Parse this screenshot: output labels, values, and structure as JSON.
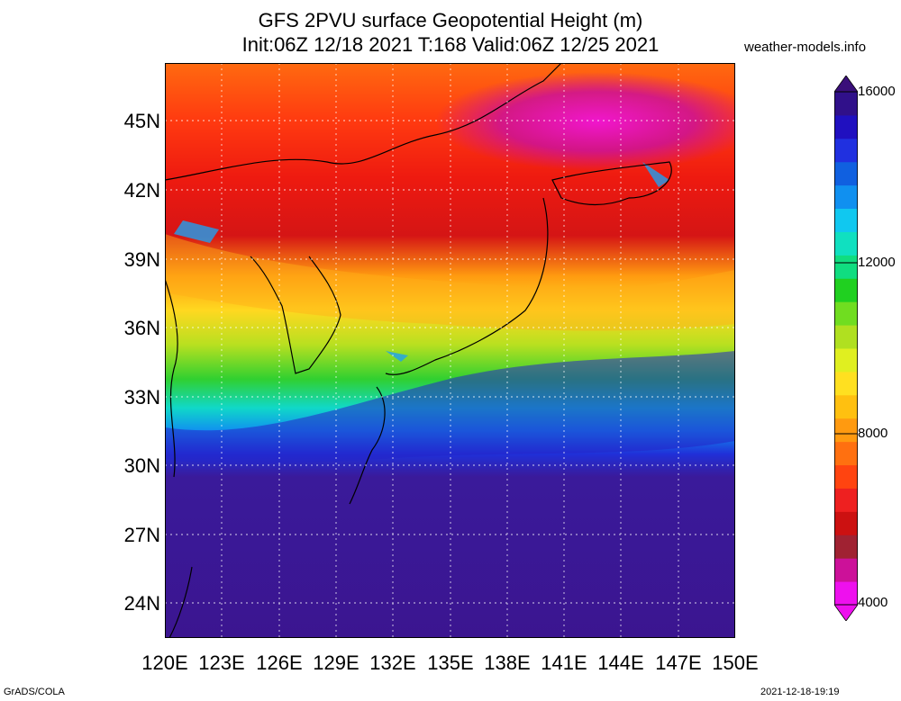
{
  "title_line1": "GFS 2PVU surface Geopotential Height (m)",
  "title_line2": "Init:06Z 12/18 2021 T:168 Valid:06Z 12/25 2021",
  "site": "weather-models.info",
  "lat_labels": [
    "45N",
    "42N",
    "39N",
    "36N",
    "33N",
    "30N",
    "27N",
    "24N"
  ],
  "lon_labels": [
    "120E",
    "123E",
    "126E",
    "129E",
    "132E",
    "135E",
    "138E",
    "141E",
    "144E",
    "147E",
    "150E"
  ],
  "colorbar": {
    "labels": [
      "16000",
      "12000",
      "8000",
      "4000"
    ],
    "colors": [
      "#ee10ee",
      "#cc1199",
      "#a02232",
      "#cc1111",
      "#ee2020",
      "#ff4410",
      "#ff7010",
      "#ff9a10",
      "#ffc010",
      "#ffe020",
      "#e0ef20",
      "#b0e020",
      "#70dd20",
      "#20d020",
      "#10dd80",
      "#10e0c0",
      "#10c8f0",
      "#1090f0",
      "#1060e0",
      "#2030e0",
      "#2010c0",
      "#30108a"
    ],
    "arrow_top": "#3a0f7a",
    "arrow_bottom": "#ee10ee"
  },
  "footer_left": "GrADS/COLA",
  "footer_right": "2021-12-18-19:19"
}
